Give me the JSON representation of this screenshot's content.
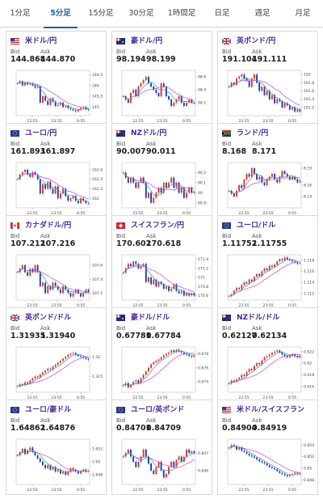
{
  "tabs": [
    {
      "label": "1分足",
      "active": false
    },
    {
      "label": "5分足",
      "active": true
    },
    {
      "label": "15分足",
      "active": false
    },
    {
      "label": "30分足",
      "active": false
    },
    {
      "label": "1時間足",
      "active": false
    },
    {
      "label": "日足",
      "active": false
    },
    {
      "label": "週足",
      "active": false
    },
    {
      "label": "月足",
      "active": false
    }
  ],
  "bid_label": "Bid",
  "ask_label": "Ask",
  "x_ticks": [
    "22:55",
    "23:55",
    "0:55"
  ],
  "colors": {
    "up": "#e03030",
    "down": "#1a3ea8",
    "ma_long": "#cc44cc",
    "ma_short": "#3a9a9a",
    "accent": "#1a5fb4",
    "pair_name": "#4a2a9a"
  },
  "pairs": [
    {
      "name": "米ドル/円",
      "bid": "144.868",
      "ask": "144.870",
      "flag": "us-flag",
      "y_ticks": [
        "146.5",
        "146",
        "145.5",
        "145"
      ],
      "y_range": [
        144.6,
        146.7
      ],
      "close": [
        146.1,
        146.2,
        146.0,
        146.15,
        146.05,
        146.1,
        146.0,
        145.9,
        145.95,
        145.2,
        145.5,
        145.3,
        145.1,
        145.4,
        145.25,
        145.05,
        145.1,
        145.2,
        145.0,
        145.05,
        144.95,
        144.9,
        144.85,
        144.8,
        144.9,
        144.95,
        145.0,
        144.9,
        144.87
      ]
    },
    {
      "name": "豪ドル/円",
      "bid": "98.194",
      "ask": "98.199",
      "flag": "au-flag",
      "y_ticks": [
        "98.6",
        "98.4",
        "98.2"
      ],
      "y_range": [
        98.0,
        98.7
      ],
      "close": [
        98.3,
        98.25,
        98.2,
        98.35,
        98.4,
        98.3,
        98.45,
        98.5,
        98.55,
        98.6,
        98.5,
        98.45,
        98.4,
        98.35,
        98.3,
        98.5,
        98.45,
        98.3,
        98.25,
        98.15,
        98.2,
        98.25,
        98.3,
        98.2,
        98.15,
        98.2,
        98.25,
        98.2,
        98.19
      ]
    },
    {
      "name": "英ポンド/円",
      "bid": "191.104",
      "ask": "191.111",
      "flag": "gb-flag",
      "y_ticks": [
        "192",
        "191.8",
        "191.6",
        "191.4",
        "191.2"
      ],
      "y_range": [
        191.0,
        192.1
      ],
      "close": [
        191.7,
        191.8,
        191.75,
        191.9,
        191.95,
        192.0,
        191.9,
        191.85,
        191.7,
        191.9,
        192.0,
        191.8,
        191.6,
        191.7,
        191.5,
        191.6,
        191.4,
        191.5,
        191.3,
        191.4,
        191.35,
        191.2,
        191.3,
        191.25,
        191.15,
        191.2,
        191.1,
        191.15,
        191.1
      ]
    },
    {
      "name": "ユーロ/円",
      "bid": "161.893",
      "ask": "161.897",
      "flag": "eu-flag",
      "y_ticks": [
        "162.6",
        "162.4",
        "162.2",
        "162"
      ],
      "y_range": [
        161.8,
        162.75
      ],
      "close": [
        162.4,
        162.5,
        162.55,
        162.6,
        162.5,
        162.45,
        162.55,
        162.5,
        162.4,
        162.1,
        162.3,
        162.2,
        162.35,
        162.2,
        162.1,
        162.25,
        162.0,
        162.1,
        162.2,
        162.05,
        161.95,
        162.0,
        162.05,
        161.95,
        161.9,
        162.0,
        161.95,
        161.9,
        161.89
      ]
    },
    {
      "name": "NZドル/円",
      "bid": "90.007",
      "ask": "90.011",
      "flag": "nz-flag",
      "y_ticks": [
        "90.2",
        "90.1",
        "90",
        "89.9"
      ],
      "y_range": [
        89.85,
        90.3
      ],
      "close": [
        90.2,
        90.15,
        90.1,
        90.15,
        90.1,
        90.05,
        90.1,
        90.15,
        90.1,
        89.95,
        90.0,
        89.9,
        89.95,
        90.0,
        90.05,
        90.0,
        90.1,
        90.05,
        90.1,
        90.15,
        90.05,
        90.1,
        90.0,
        90.05,
        89.95,
        90.0,
        90.05,
        90.0,
        90.01
      ]
    },
    {
      "name": "ランド/円",
      "bid": "8.168",
      "ask": "8.171",
      "flag": "za-flag",
      "y_ticks": [
        "8.19",
        "8.16",
        "8.14"
      ],
      "y_range": [
        8.12,
        8.2
      ],
      "close": [
        8.15,
        8.145,
        8.14,
        8.15,
        8.16,
        8.155,
        8.17,
        8.18,
        8.175,
        8.19,
        8.18,
        8.17,
        8.175,
        8.165,
        8.16,
        8.17,
        8.175,
        8.18,
        8.17,
        8.165,
        8.175,
        8.185,
        8.18,
        8.175,
        8.17,
        8.175,
        8.17,
        8.165,
        8.168
      ]
    },
    {
      "name": "カナダドル/円",
      "bid": "107.212",
      "ask": "107.216",
      "flag": "ca-flag",
      "y_ticks": [
        "107.6",
        "107.4",
        "107.2"
      ],
      "y_range": [
        107.1,
        107.75
      ],
      "close": [
        107.5,
        107.55,
        107.6,
        107.5,
        107.45,
        107.55,
        107.5,
        107.6,
        107.5,
        107.3,
        107.35,
        107.2,
        107.3,
        107.25,
        107.35,
        107.3,
        107.25,
        107.2,
        107.3,
        107.25,
        107.2,
        107.15,
        107.2,
        107.25,
        107.2,
        107.15,
        107.2,
        107.25,
        107.21
      ]
    },
    {
      "name": "スイスフラン/円",
      "bid": "170.602",
      "ask": "170.618",
      "flag": "ch-flag",
      "y_ticks": [
        "171.4",
        "171.2",
        "171",
        "170.8",
        "170.6"
      ],
      "y_range": [
        170.5,
        171.5
      ],
      "close": [
        171.1,
        171.2,
        171.3,
        171.25,
        171.35,
        171.3,
        171.2,
        171.25,
        171.3,
        170.9,
        171.0,
        170.85,
        170.95,
        170.8,
        170.9,
        170.85,
        170.75,
        170.8,
        170.7,
        170.75,
        170.85,
        170.7,
        170.65,
        170.7,
        170.6,
        170.65,
        170.6,
        170.65,
        170.6
      ]
    },
    {
      "name": "ユーロ/ドル",
      "bid": "1.11752",
      "ask": "1.11755",
      "flag": "eu-flag",
      "y_ticks": [
        "1.118",
        "1.116",
        "1.114",
        "1.112"
      ],
      "y_range": [
        1.1108,
        1.119
      ],
      "close": [
        1.1115,
        1.1118,
        1.1125,
        1.113,
        1.1128,
        1.1135,
        1.114,
        1.1138,
        1.1145,
        1.1142,
        1.115,
        1.1155,
        1.1152,
        1.116,
        1.1165,
        1.1162,
        1.117,
        1.1168,
        1.1172,
        1.1178,
        1.1182,
        1.118,
        1.1185,
        1.1182,
        1.118,
        1.1178,
        1.1176,
        1.1174,
        1.1175
      ]
    },
    {
      "name": "英ポンド/ドル",
      "bid": "1.31935",
      "ask": "1.31940",
      "flag": "gb-flag",
      "y_ticks": [
        "1.32",
        "1.315"
      ],
      "y_range": [
        1.311,
        1.3225
      ],
      "close": [
        1.3125,
        1.313,
        1.3128,
        1.3135,
        1.3132,
        1.314,
        1.3145,
        1.315,
        1.3148,
        1.3155,
        1.316,
        1.3165,
        1.317,
        1.3168,
        1.3175,
        1.318,
        1.3185,
        1.319,
        1.3195,
        1.32,
        1.3205,
        1.3208,
        1.321,
        1.3205,
        1.3202,
        1.32,
        1.3198,
        1.3195,
        1.3193
      ]
    },
    {
      "name": "豪ドル/ドル",
      "bid": "0.67781",
      "ask": "0.67784",
      "flag": "au-flag",
      "y_ticks": [
        "0.678",
        "0.676",
        "0.674"
      ],
      "y_range": [
        0.6725,
        0.679
      ],
      "close": [
        0.6735,
        0.6738,
        0.6732,
        0.6736,
        0.674,
        0.6742,
        0.6738,
        0.6745,
        0.675,
        0.6755,
        0.676,
        0.6765,
        0.6768,
        0.677,
        0.6772,
        0.6775,
        0.6778,
        0.678,
        0.6782,
        0.6785,
        0.6783,
        0.6786,
        0.6784,
        0.6782,
        0.678,
        0.6779,
        0.6777,
        0.6776,
        0.6778
      ]
    },
    {
      "name": "NZドル/ドル",
      "bid": "0.62127",
      "ask": "0.62134",
      "flag": "nz-flag",
      "y_ticks": [
        "0.622",
        "0.62",
        "0.618",
        "0.616"
      ],
      "y_range": [
        0.615,
        0.6228
      ],
      "close": [
        0.6165,
        0.617,
        0.6168,
        0.6172,
        0.6175,
        0.618,
        0.6178,
        0.6185,
        0.619,
        0.6188,
        0.6195,
        0.62,
        0.6198,
        0.6205,
        0.621,
        0.6212,
        0.6215,
        0.6218,
        0.622,
        0.6222,
        0.6219,
        0.6215,
        0.6212,
        0.621,
        0.6213,
        0.6215,
        0.6212,
        0.621,
        0.6213
      ]
    },
    {
      "name": "ユーロ/豪ドル",
      "bid": "1.64862",
      "ask": "1.64876",
      "flag": "eu-flag",
      "y_ticks": [
        "1.652",
        "1.65",
        "1.648"
      ],
      "y_range": [
        1.6465,
        1.6535
      ],
      "close": [
        1.651,
        1.6515,
        1.652,
        1.6512,
        1.6518,
        1.6522,
        1.6515,
        1.651,
        1.6505,
        1.65,
        1.6495,
        1.649,
        1.6495,
        1.6488,
        1.6492,
        1.6485,
        1.6488,
        1.6482,
        1.6485,
        1.648,
        1.6485,
        1.649,
        1.6488,
        1.6485,
        1.6482,
        1.6485,
        1.6488,
        1.6485,
        1.6486
      ]
    },
    {
      "name": "ユーロ/英ポンド",
      "bid": "0.84701",
      "ask": "0.84709",
      "flag": "eu-flag",
      "y_ticks": [
        "0.847",
        "0.846"
      ],
      "y_range": [
        0.8452,
        0.8478
      ],
      "close": [
        0.8468,
        0.847,
        0.8472,
        0.8468,
        0.8465,
        0.8462,
        0.8465,
        0.8468,
        0.8472,
        0.8468,
        0.8464,
        0.846,
        0.8458,
        0.8462,
        0.8465,
        0.846,
        0.8456,
        0.8458,
        0.8462,
        0.8465,
        0.8462,
        0.8466,
        0.8468,
        0.8465,
        0.8468,
        0.8472,
        0.847,
        0.8471,
        0.847
      ]
    },
    {
      "name": "米ドル/スイスフラン",
      "bid": "0.84904",
      "ask": "0.84919",
      "flag": "us-flag",
      "y_ticks": [
        "0.854",
        "0.852",
        "0.85",
        "0.848"
      ],
      "y_range": [
        0.8472,
        0.855
      ],
      "close": [
        0.8535,
        0.854,
        0.8538,
        0.8532,
        0.8536,
        0.853,
        0.8528,
        0.8525,
        0.8522,
        0.852,
        0.8518,
        0.8515,
        0.8512,
        0.851,
        0.8508,
        0.8505,
        0.8502,
        0.85,
        0.8498,
        0.8495,
        0.8492,
        0.849,
        0.8488,
        0.8486,
        0.8488,
        0.849,
        0.8492,
        0.8491,
        0.849
      ]
    }
  ]
}
